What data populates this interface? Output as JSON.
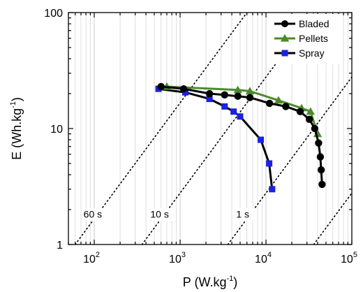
{
  "chart_data": {
    "type": "scatter",
    "title": "",
    "xlabel": {
      "base": "P (W.kg",
      "sup": "-1",
      "tail": ")"
    },
    "ylabel": {
      "base": "E (Wh.kg",
      "sup": "-1",
      "tail": ")"
    },
    "xscale": "log",
    "yscale": "log",
    "xlim": [
      50,
      100000
    ],
    "ylim": [
      1,
      100
    ],
    "x_ticks": [
      {
        "value": 100,
        "base": "10",
        "exp": "2"
      },
      {
        "value": 1000,
        "base": "10",
        "exp": "3"
      },
      {
        "value": 10000,
        "base": "10",
        "exp": "4"
      },
      {
        "value": 100000,
        "base": "10",
        "exp": "5"
      }
    ],
    "y_ticks": [
      {
        "value": 1,
        "label": "1"
      },
      {
        "value": 10,
        "label": "10"
      },
      {
        "value": 100,
        "label": "100"
      }
    ],
    "grid": "vertical minor log gridlines",
    "legend_position": "top-right",
    "series": [
      {
        "name": "Bladed",
        "color": "#000000",
        "marker": "circle",
        "points": [
          [
            600,
            23
          ],
          [
            1100,
            22
          ],
          [
            2200,
            20
          ],
          [
            3300,
            19.5
          ],
          [
            4700,
            19
          ],
          [
            6500,
            18.5
          ],
          [
            11000,
            16.5
          ],
          [
            17000,
            15.5
          ],
          [
            25000,
            14
          ],
          [
            32000,
            12
          ],
          [
            37000,
            10
          ],
          [
            41000,
            7.5
          ],
          [
            43000,
            5.7
          ],
          [
            44000,
            4.4
          ],
          [
            45000,
            3.3
          ]
        ]
      },
      {
        "name": "Pellets",
        "color": "#4c8a2c",
        "marker": "triangle",
        "points": [
          [
            700,
            23
          ],
          [
            4700,
            21.5
          ],
          [
            6500,
            21
          ],
          [
            14000,
            17.5
          ],
          [
            26000,
            15
          ],
          [
            33000,
            14
          ],
          [
            40000,
            9
          ]
        ]
      },
      {
        "name": "Spray",
        "color": "#1a22e0",
        "marker": "square",
        "points": [
          [
            560,
            22
          ],
          [
            1150,
            20.5
          ],
          [
            2200,
            18
          ],
          [
            3300,
            15.5
          ],
          [
            4200,
            14
          ],
          [
            5000,
            12.7
          ],
          [
            8700,
            8
          ],
          [
            10900,
            5
          ],
          [
            11800,
            3
          ]
        ]
      }
    ],
    "connector_color": "#000000",
    "annotations": [
      {
        "label": "60 s",
        "seconds": 60,
        "at": [
          75,
          1.7
        ]
      },
      {
        "label": "10 s",
        "seconds": 10,
        "at": [
          450,
          1.7
        ]
      },
      {
        "label": "1 s",
        "seconds": 1,
        "at": [
          4500,
          1.7
        ]
      }
    ],
    "reference_lines": [
      {
        "name": "60 s",
        "seconds": 60
      },
      {
        "name": "10 s",
        "seconds": 10
      },
      {
        "name": "1 s",
        "seconds": 1
      },
      {
        "name": "0.1 s",
        "seconds": 0.1
      }
    ]
  }
}
